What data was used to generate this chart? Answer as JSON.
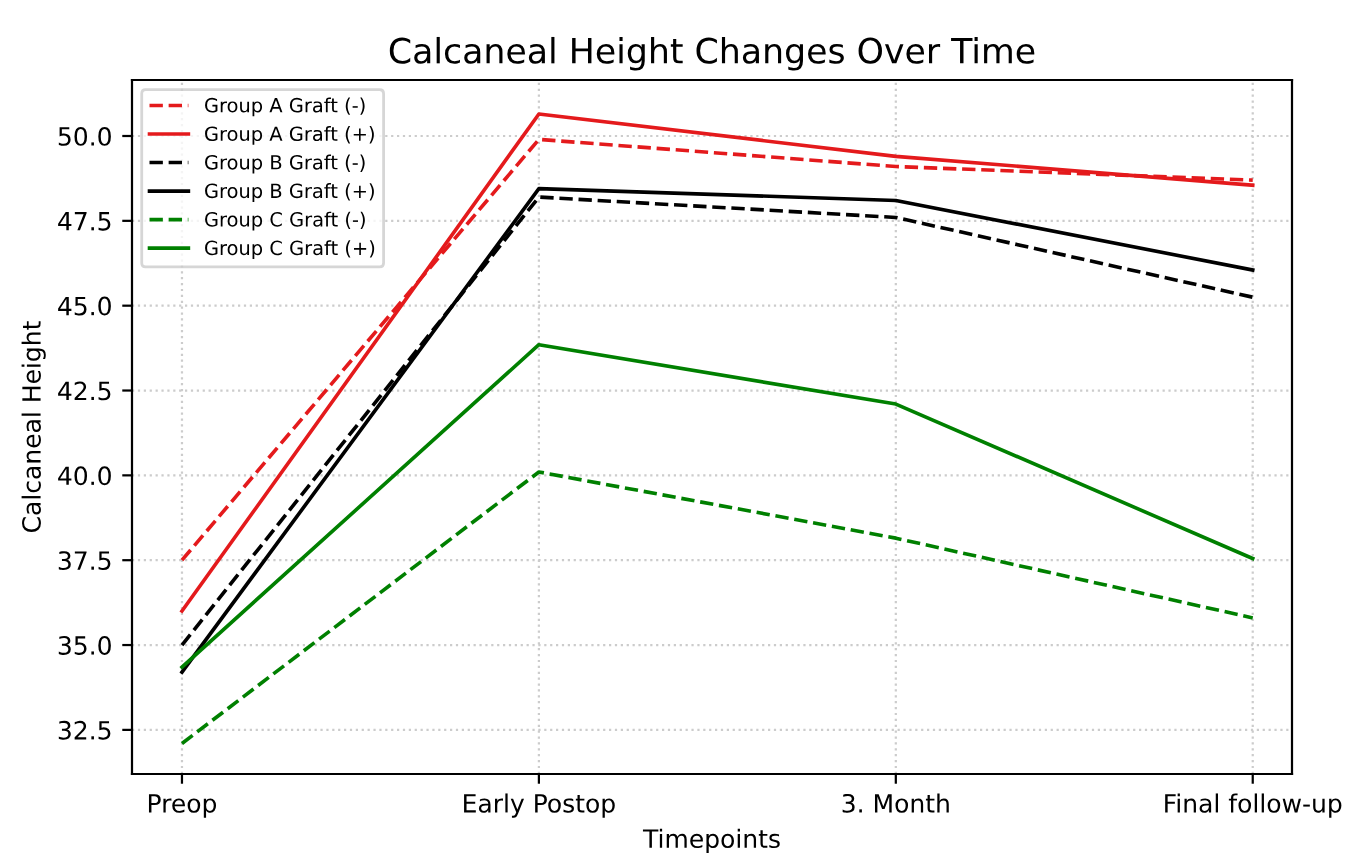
{
  "chart_data": {
    "type": "line",
    "title": "Calcaneal Height Changes Over Time",
    "xlabel": "Timepoints",
    "ylabel": "Calcaneal Height",
    "categories": [
      "Preop",
      "Early Postop",
      "3. Month",
      "Final follow-up"
    ],
    "series": [
      {
        "name": "Group A Graft (-)",
        "color": "#e41a1c",
        "line_style": "dashed",
        "values": [
          37.5,
          49.9,
          49.1,
          48.7
        ]
      },
      {
        "name": "Group A Graft (+)",
        "color": "#e41a1c",
        "line_style": "solid",
        "values": [
          36.0,
          50.65,
          49.4,
          48.55
        ]
      },
      {
        "name": "Group B Graft (-)",
        "color": "#000000",
        "line_style": "dashed",
        "values": [
          35.0,
          48.2,
          47.6,
          45.25
        ]
      },
      {
        "name": "Group B Graft (+)",
        "color": "#000000",
        "line_style": "solid",
        "values": [
          34.2,
          48.45,
          48.1,
          46.05
        ]
      },
      {
        "name": "Group C Graft (-)",
        "color": "#008000",
        "line_style": "dashed",
        "values": [
          32.1,
          40.1,
          38.15,
          35.8
        ]
      },
      {
        "name": "Group C Graft (+)",
        "color": "#008000",
        "line_style": "solid",
        "values": [
          34.35,
          43.85,
          42.1,
          37.55
        ]
      }
    ],
    "ylim": [
      31.2,
      51.65
    ],
    "yticks": [
      {
        "value": 32.5,
        "label": "32.5"
      },
      {
        "value": 35,
        "label": "35.0"
      },
      {
        "value": 37.5,
        "label": "37.5"
      },
      {
        "value": 40,
        "label": "40.0"
      },
      {
        "value": 42.5,
        "label": "42.5"
      },
      {
        "value": 45,
        "label": "45.0"
      },
      {
        "value": 47.5,
        "label": "47.5"
      },
      {
        "value": 50,
        "label": "50.0"
      }
    ],
    "grid": true,
    "legend": "top left"
  }
}
